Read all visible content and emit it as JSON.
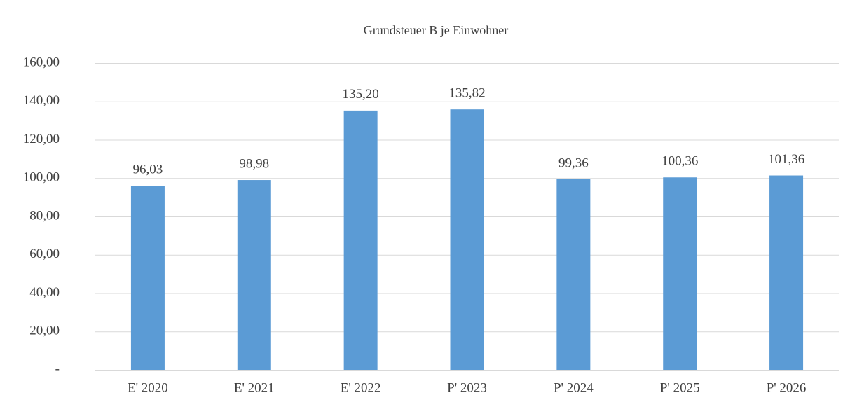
{
  "chart_data": {
    "type": "bar",
    "title": "Grundsteuer B je Einwohner",
    "categories": [
      "E' 2020",
      "E' 2021",
      "E' 2022",
      "P' 2023",
      "P' 2024",
      "P' 2025",
      "P' 2026"
    ],
    "values": [
      96.03,
      98.98,
      135.2,
      135.82,
      99.36,
      100.36,
      101.36
    ],
    "value_labels": [
      "96,03",
      "98,98",
      "135,20",
      "135,82",
      "99,36",
      "100,36",
      "101,36"
    ],
    "color": "#5b9bd5",
    "ylim": [
      0,
      160
    ],
    "yticks": [
      {
        "value": 0,
        "label": "-"
      },
      {
        "value": 20,
        "label": "20,00"
      },
      {
        "value": 40,
        "label": "40,00"
      },
      {
        "value": 60,
        "label": "60,00"
      },
      {
        "value": 80,
        "label": "80,00"
      },
      {
        "value": 100,
        "label": "100,00"
      },
      {
        "value": 120,
        "label": "120,00"
      },
      {
        "value": 140,
        "label": "140,00"
      },
      {
        "value": 160,
        "label": "160,00"
      }
    ],
    "grid": true
  }
}
